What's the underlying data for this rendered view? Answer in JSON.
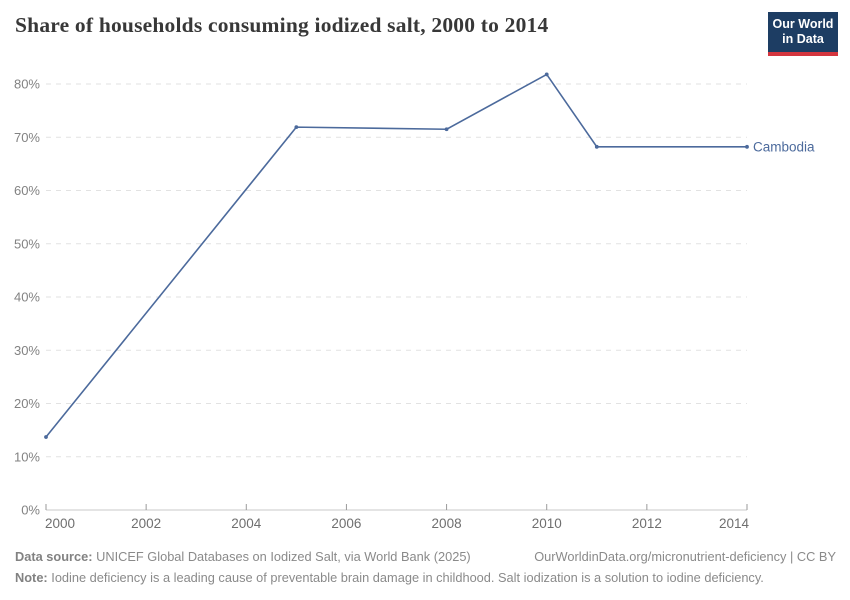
{
  "header": {
    "title": "Share of households consuming iodized salt, 2000 to 2014",
    "logo": {
      "line1": "Our World",
      "line2": "in Data",
      "bg_color": "#1d3d63",
      "accent_color": "#d4353e"
    }
  },
  "chart_data": {
    "type": "line",
    "title": "Share of households consuming iodized salt, 2000 to 2014",
    "x": [
      2000,
      2005,
      2008,
      2010,
      2011,
      2014
    ],
    "series": [
      {
        "name": "Cambodia",
        "color": "#4c6a9c",
        "values": [
          13.7,
          71.9,
          71.5,
          81.8,
          68.2,
          68.2
        ]
      }
    ],
    "x_ticks": [
      2000,
      2002,
      2004,
      2006,
      2008,
      2010,
      2012,
      2014
    ],
    "y_ticks": [
      0,
      10,
      20,
      30,
      40,
      50,
      60,
      70,
      80
    ],
    "y_tick_suffix": "%",
    "xlim": [
      2000,
      2014
    ],
    "ylim": [
      0,
      85
    ],
    "grid": "horizontal-dashed",
    "legend": "end-of-line-label",
    "grid_color": "#e2e2e2",
    "axis_color": "#c8c8c8",
    "tick_color": "#9a9a9a"
  },
  "footer": {
    "source_label": "Data source:",
    "source_text": " UNICEF Global Databases on Iodized Salt, via World Bank (2025)",
    "rights": "OurWorldinData.org/micronutrient-deficiency | CC BY",
    "note_label": "Note:",
    "note_text": " Iodine deficiency is a leading cause of preventable brain damage in childhood. Salt iodization is a solution to iodine deficiency."
  }
}
